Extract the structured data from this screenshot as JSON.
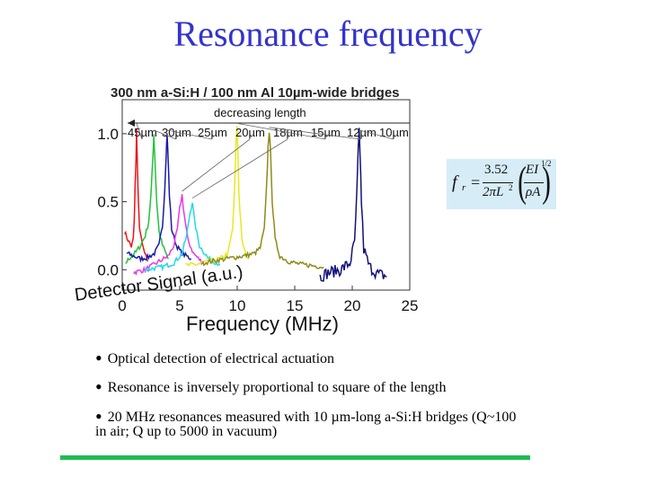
{
  "slide": {
    "title": "Resonance frequency",
    "bullets": [
      "Optical detection of electrical actuation",
      "Resonance is inversely proportional to square of the length",
      "20 MHz resonances measured with 10 µm-long a-Si:H bridges (Q~100",
      "in air; Q up to 5000 in vacuum)"
    ],
    "formula": {
      "lhs": "f",
      "lhs_sub": "r",
      "eq": "=",
      "num": "3.52",
      "den": "2πL",
      "den_sup": "2",
      "inner_num": "EI",
      "inner_den": "ρA",
      "exponent": "1/2"
    },
    "colors": {
      "title": "#3333cc",
      "accent_line": "#22bb55",
      "formula_bg": "#d6ecf7"
    }
  },
  "chart_data": {
    "type": "line",
    "title": "300 nm a-Si:H / 100 nm Al 10µm-wide bridges",
    "annotation": "decreasing length",
    "xlabel": "Frequency (MHz)",
    "ylabel": "Detector Signal (a.u.)",
    "xlim": [
      0,
      25
    ],
    "ylim": [
      -0.15,
      1.25
    ],
    "x_ticks": [
      "0",
      "5",
      "10",
      "15",
      "20",
      "25"
    ],
    "y_ticks": [
      "0.0",
      "0.5",
      "1.0"
    ],
    "series": [
      {
        "name": "45µm",
        "color": "#e8151b",
        "peak": 1.05,
        "width": 0.15,
        "noise_end": 2.2,
        "points": [
          [
            0.2,
            0.28
          ],
          [
            0.5,
            0.22
          ],
          [
            0.8,
            0.17
          ],
          [
            0.95,
            0.22
          ],
          [
            1.05,
            0.36
          ],
          [
            1.12,
            0.6
          ],
          [
            1.2,
            0.82
          ],
          [
            1.25,
            1.03
          ],
          [
            1.3,
            0.85
          ],
          [
            1.38,
            0.55
          ],
          [
            1.5,
            0.32
          ],
          [
            1.7,
            0.2
          ],
          [
            1.95,
            0.12
          ],
          [
            2.2,
            0.06
          ]
        ]
      },
      {
        "name": "30µm",
        "color": "#23c23a",
        "peak": 1.0,
        "width": 0.2,
        "noise_end": 4.0,
        "points": [
          [
            0.3,
            0.05
          ],
          [
            0.8,
            0.1
          ],
          [
            1.2,
            0.13
          ],
          [
            1.6,
            0.18
          ],
          [
            2.0,
            0.25
          ],
          [
            2.3,
            0.35
          ],
          [
            2.5,
            0.55
          ],
          [
            2.65,
            0.8
          ],
          [
            2.75,
            1.0
          ],
          [
            2.85,
            0.8
          ],
          [
            3.0,
            0.5
          ],
          [
            3.2,
            0.28
          ],
          [
            3.5,
            0.18
          ],
          [
            3.8,
            0.12
          ],
          [
            4.0,
            0.08
          ]
        ]
      },
      {
        "name": "25µm",
        "color": "#1a1aa8",
        "peak": 1.0,
        "width": 0.2,
        "noise_end": 6.0,
        "points": [
          [
            0.4,
            0.12
          ],
          [
            1.0,
            0.1
          ],
          [
            1.6,
            0.08
          ],
          [
            2.2,
            0.09
          ],
          [
            2.8,
            0.12
          ],
          [
            3.2,
            0.18
          ],
          [
            3.5,
            0.32
          ],
          [
            3.7,
            0.6
          ],
          [
            3.82,
            0.85
          ],
          [
            3.9,
            1.0
          ],
          [
            3.98,
            0.85
          ],
          [
            4.1,
            0.55
          ],
          [
            4.3,
            0.3
          ],
          [
            4.7,
            0.18
          ],
          [
            5.2,
            0.12
          ],
          [
            6.0,
            0.08
          ]
        ]
      },
      {
        "name": "20µm",
        "color": "#e838e8",
        "peak": 0.55,
        "width": 0.3,
        "noise_end": 7.0,
        "points": [
          [
            1.0,
            -0.02
          ],
          [
            2.0,
            0.0
          ],
          [
            3.0,
            0.05
          ],
          [
            4.0,
            0.1
          ],
          [
            4.5,
            0.18
          ],
          [
            4.8,
            0.3
          ],
          [
            5.0,
            0.45
          ],
          [
            5.2,
            0.55
          ],
          [
            5.4,
            0.4
          ],
          [
            5.7,
            0.22
          ],
          [
            6.2,
            0.12
          ],
          [
            7.0,
            0.05
          ]
        ]
      },
      {
        "name": "18µm",
        "color": "#22d8e8",
        "peak": 0.5,
        "width": 0.3,
        "noise_end": 8.5,
        "points": [
          [
            2.0,
            0.0
          ],
          [
            3.5,
            0.02
          ],
          [
            4.5,
            0.05
          ],
          [
            5.2,
            0.12
          ],
          [
            5.6,
            0.25
          ],
          [
            5.9,
            0.42
          ],
          [
            6.1,
            0.5
          ],
          [
            6.3,
            0.35
          ],
          [
            6.7,
            0.18
          ],
          [
            7.5,
            0.08
          ],
          [
            8.5,
            0.04
          ]
        ]
      },
      {
        "name": "15µm",
        "color": "#e8e822",
        "peak": 1.05,
        "width": 0.12,
        "noise_end": 11.0,
        "points": [
          [
            5.5,
            0.03
          ],
          [
            6.5,
            0.04
          ],
          [
            7.5,
            0.06
          ],
          [
            8.5,
            0.08
          ],
          [
            9.2,
            0.12
          ],
          [
            9.6,
            0.3
          ],
          [
            9.8,
            0.65
          ],
          [
            9.9,
            0.95
          ],
          [
            9.97,
            1.05
          ],
          [
            10.05,
            0.9
          ],
          [
            10.15,
            0.55
          ],
          [
            10.4,
            0.22
          ],
          [
            10.7,
            0.12
          ],
          [
            11.0,
            0.08
          ]
        ]
      },
      {
        "name": "12µm",
        "color": "#8c8c1a",
        "peak": 1.02,
        "width": 0.12,
        "noise_end": 17.5,
        "points": [
          [
            7.0,
            0.05
          ],
          [
            9.0,
            0.08
          ],
          [
            10.5,
            0.1
          ],
          [
            11.5,
            0.12
          ],
          [
            12.0,
            0.16
          ],
          [
            12.35,
            0.3
          ],
          [
            12.55,
            0.6
          ],
          [
            12.68,
            0.9
          ],
          [
            12.78,
            1.02
          ],
          [
            12.9,
            0.85
          ],
          [
            13.05,
            0.5
          ],
          [
            13.3,
            0.22
          ],
          [
            13.7,
            0.1
          ],
          [
            14.5,
            0.06
          ],
          [
            15.5,
            0.04
          ],
          [
            16.5,
            0.03
          ],
          [
            17.5,
            0.02
          ]
        ]
      },
      {
        "name": "10µm",
        "color": "#12127a",
        "peak": 1.0,
        "width": 0.1,
        "noise_end": 23.0,
        "points": [
          [
            17.2,
            -0.05
          ],
          [
            18.0,
            -0.02
          ],
          [
            19.0,
            0.0
          ],
          [
            19.8,
            0.05
          ],
          [
            20.2,
            0.2
          ],
          [
            20.4,
            0.55
          ],
          [
            20.52,
            0.88
          ],
          [
            20.6,
            1.0
          ],
          [
            20.68,
            0.85
          ],
          [
            20.8,
            0.5
          ],
          [
            21.0,
            0.15
          ],
          [
            21.5,
            0.02
          ],
          [
            22.2,
            -0.03
          ],
          [
            23.0,
            -0.05
          ]
        ]
      }
    ]
  }
}
